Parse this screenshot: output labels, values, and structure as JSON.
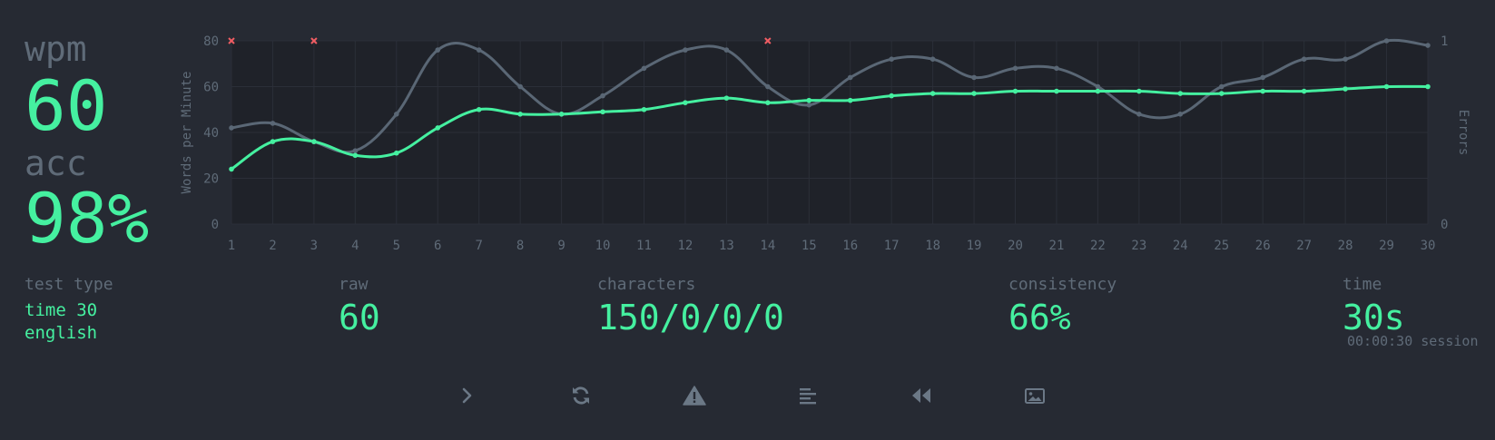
{
  "summary": {
    "wpm_label": "wpm",
    "wpm_value": "60",
    "acc_label": "acc",
    "acc_value": "98%"
  },
  "stats": {
    "test_type_label": "test type",
    "test_type_line1": "time 30",
    "test_type_line2": "english",
    "raw_label": "raw",
    "raw_value": "60",
    "characters_label": "characters",
    "characters_value": "150/0/0/0",
    "consistency_label": "consistency",
    "consistency_value": "66%",
    "time_label": "time",
    "time_value": "30s",
    "session_text": "00:00:30 session"
  },
  "colors": {
    "background": "#262a33",
    "plot_background": "#1f2229",
    "accent": "#45f0a0",
    "raw_line": "#5a6775",
    "error_mark": "#f05d63",
    "muted_text": "#5f6b78"
  },
  "chart_data": {
    "type": "line",
    "xlabel": "",
    "ylabel": "Words per Minute",
    "y2label": "Errors",
    "x": [
      1,
      2,
      3,
      4,
      5,
      6,
      7,
      8,
      9,
      10,
      11,
      12,
      13,
      14,
      15,
      16,
      17,
      18,
      19,
      20,
      21,
      22,
      23,
      24,
      25,
      26,
      27,
      28,
      29,
      30
    ],
    "ylim": [
      0,
      80
    ],
    "yticks": [
      0,
      20,
      40,
      60,
      80
    ],
    "y2lim": [
      0,
      1
    ],
    "y2ticks": [
      0,
      1
    ],
    "grid": true,
    "series": [
      {
        "key": "raw",
        "values": [
          42,
          44,
          36,
          32,
          48,
          76,
          76,
          60,
          48,
          56,
          68,
          76,
          76,
          60,
          52,
          64,
          72,
          72,
          64,
          68,
          68,
          60,
          48,
          48,
          60,
          64,
          72,
          72,
          80,
          78
        ]
      },
      {
        "key": "wpm",
        "values": [
          24,
          36,
          36,
          30,
          31,
          42,
          50,
          48,
          48,
          49,
          50,
          53,
          55,
          53,
          54,
          54,
          56,
          57,
          57,
          58,
          58,
          58,
          58,
          57,
          57,
          58,
          58,
          59,
          60,
          60
        ]
      }
    ],
    "errors_at": [
      1,
      3,
      14
    ]
  },
  "buttons": [
    {
      "name": "next-test-button",
      "icon": "chevron-right-icon"
    },
    {
      "name": "restart-button",
      "icon": "refresh-icon"
    },
    {
      "name": "report-button",
      "icon": "warning-icon"
    },
    {
      "name": "words-history-button",
      "icon": "align-left-icon"
    },
    {
      "name": "replay-button",
      "icon": "rewind-icon"
    },
    {
      "name": "screenshot-button",
      "icon": "image-icon"
    }
  ]
}
